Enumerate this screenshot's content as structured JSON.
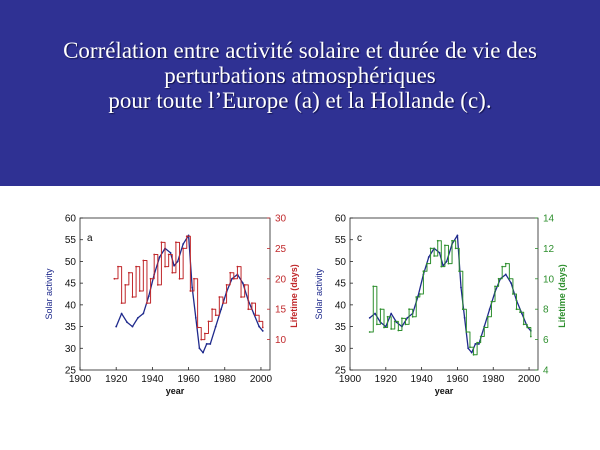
{
  "slide": {
    "title_lines": [
      "Corrélation entre activité solaire et durée de vie des",
      "perturbations atmosphériques",
      "pour toute l’Europe (a) et la Hollande (c)."
    ]
  },
  "colors": {
    "banner": "#2f3193",
    "solar_activity": "#1f2a8c",
    "lifetime_a": "#c0282b",
    "lifetime_c": "#2e8f2e"
  },
  "chart_data": [
    {
      "type": "line",
      "panel_label": "a",
      "xlabel": "year",
      "ylabel_left": "Solar activity",
      "ylabel_right": "Lifetime (days)",
      "x_ticks": [
        1900,
        1920,
        1940,
        1960,
        1980,
        2000
      ],
      "y_left_ticks": [
        25,
        30,
        35,
        40,
        45,
        50,
        55,
        60
      ],
      "y_right_ticks": [
        10,
        15,
        20,
        25,
        30
      ],
      "xlim": [
        1900,
        2005
      ],
      "ylim_left": [
        25,
        60
      ],
      "ylim_right": [
        5,
        30
      ],
      "series": [
        {
          "name": "Solar activity",
          "axis": "left",
          "color": "#1f2a8c",
          "x": [
            1920,
            1923,
            1926,
            1929,
            1932,
            1935,
            1938,
            1941,
            1944,
            1947,
            1950,
            1952,
            1954,
            1957,
            1960,
            1962,
            1964,
            1966,
            1968,
            1970,
            1972,
            1975,
            1978,
            1981,
            1984,
            1987,
            1990,
            1993,
            1996,
            1999,
            2001
          ],
          "y": [
            35,
            38,
            36,
            35,
            37,
            38,
            42,
            47,
            51,
            53,
            52,
            49,
            50,
            54,
            56,
            44,
            37,
            30,
            29,
            31,
            31,
            35,
            39,
            43,
            46,
            47,
            45,
            41,
            38,
            35,
            34
          ]
        },
        {
          "name": "Lifetime (days)",
          "axis": "right",
          "color": "#c0282b",
          "x": [
            1919,
            1921,
            1923,
            1925,
            1927,
            1929,
            1931,
            1933,
            1935,
            1937,
            1939,
            1941,
            1943,
            1945,
            1947,
            1949,
            1951,
            1953,
            1955,
            1957,
            1959,
            1961,
            1963,
            1965,
            1967,
            1969,
            1971,
            1973,
            1975,
            1977,
            1979,
            1981,
            1983,
            1985,
            1987,
            1989,
            1991,
            1993,
            1995,
            1997,
            1999,
            2001
          ],
          "y": [
            20,
            22,
            16,
            19,
            21,
            17,
            22,
            18,
            23,
            16,
            20,
            24,
            19,
            26,
            22,
            24,
            21,
            26,
            20,
            25,
            27,
            18,
            20,
            12,
            10,
            11,
            13,
            15,
            14,
            17,
            16,
            19,
            21,
            20,
            22,
            17,
            19,
            15,
            16,
            14,
            13,
            12
          ]
        }
      ]
    },
    {
      "type": "line",
      "panel_label": "c",
      "xlabel": "year",
      "ylabel_left": "Solar activity",
      "ylabel_right": "Lifetime (days)",
      "x_ticks": [
        1900,
        1920,
        1940,
        1960,
        1980,
        2000
      ],
      "y_left_ticks": [
        25,
        30,
        35,
        40,
        45,
        50,
        55,
        60
      ],
      "y_right_ticks": [
        4,
        6,
        8,
        10,
        12,
        14
      ],
      "xlim": [
        1900,
        2005
      ],
      "ylim_left": [
        25,
        60
      ],
      "ylim_right": [
        4,
        14
      ],
      "series": [
        {
          "name": "Solar activity",
          "axis": "left",
          "color": "#1f2a8c",
          "x": [
            1911,
            1914,
            1917,
            1920,
            1923,
            1926,
            1929,
            1932,
            1935,
            1938,
            1941,
            1944,
            1947,
            1950,
            1952,
            1954,
            1957,
            1960,
            1962,
            1964,
            1966,
            1968,
            1970,
            1972,
            1975,
            1978,
            1981,
            1984,
            1987,
            1990,
            1993,
            1996,
            1999,
            2001
          ],
          "y": [
            37,
            38,
            36,
            35,
            38,
            36,
            35,
            37,
            38,
            42,
            47,
            51,
            53,
            52,
            49,
            50,
            54,
            56,
            44,
            37,
            30,
            29,
            31,
            31,
            35,
            39,
            43,
            46,
            47,
            45,
            41,
            38,
            35,
            34
          ]
        },
        {
          "name": "Lifetime (days)",
          "axis": "right",
          "color": "#2e8f2e",
          "x": [
            1911,
            1913,
            1915,
            1917,
            1919,
            1921,
            1923,
            1925,
            1927,
            1929,
            1931,
            1933,
            1935,
            1937,
            1939,
            1941,
            1943,
            1945,
            1947,
            1949,
            1951,
            1953,
            1955,
            1957,
            1959,
            1961,
            1963,
            1965,
            1967,
            1969,
            1971,
            1973,
            1975,
            1977,
            1979,
            1981,
            1983,
            1985,
            1987,
            1989,
            1991,
            1993,
            1995,
            1997,
            1999,
            2001
          ],
          "y": [
            6.5,
            9.5,
            7.0,
            8.0,
            6.8,
            7.5,
            6.7,
            7.2,
            6.6,
            7.4,
            7.0,
            8.0,
            7.5,
            8.8,
            9.0,
            10.5,
            11.0,
            12.0,
            11.5,
            12.5,
            10.8,
            12.2,
            11.0,
            12.5,
            12.0,
            10.5,
            8.0,
            6.5,
            5.5,
            5.0,
            5.8,
            6.2,
            6.8,
            7.5,
            8.5,
            9.5,
            10.0,
            10.8,
            11.0,
            10.0,
            9.0,
            8.0,
            7.8,
            7.0,
            6.8,
            6.2
          ]
        }
      ]
    }
  ]
}
